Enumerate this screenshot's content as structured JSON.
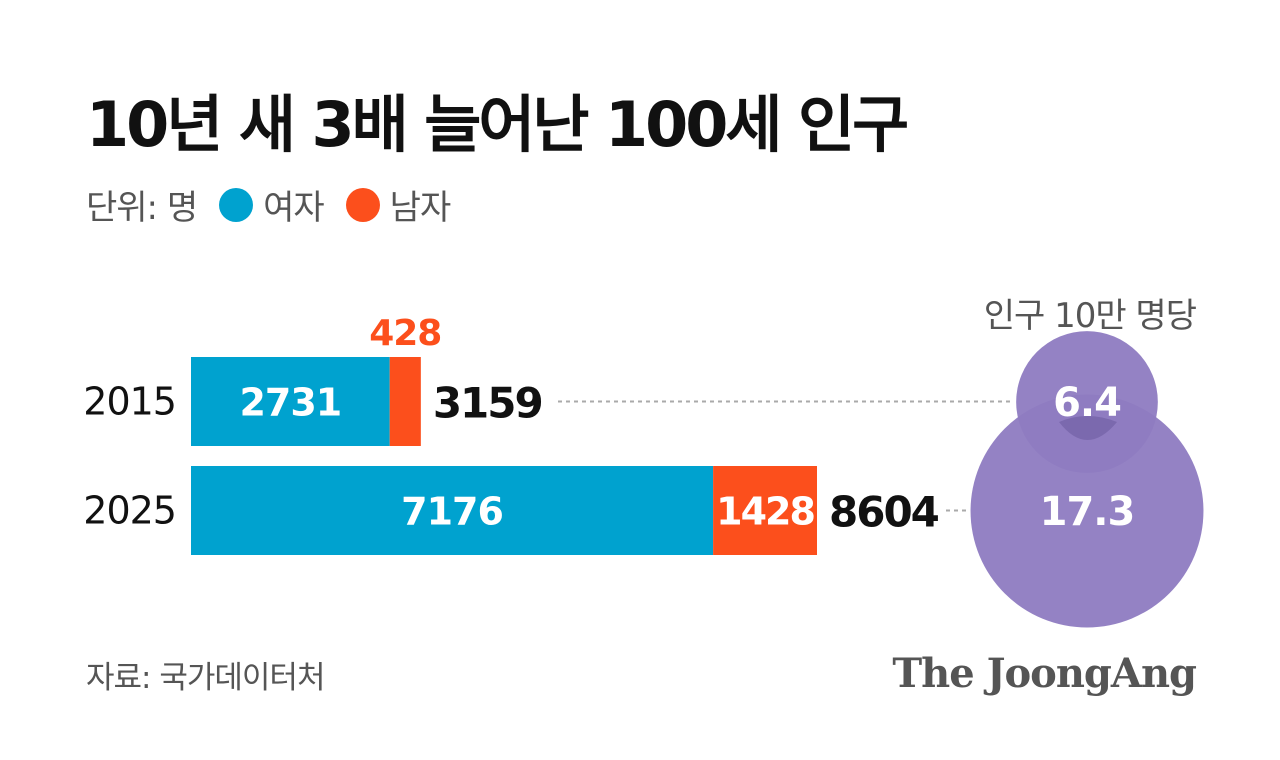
{
  "header": {
    "title": "10년 새 3배 늘어난 100세 인구",
    "unit_label": "단위: 명",
    "legend": [
      {
        "label": "여자",
        "color": "#00a2cf"
      },
      {
        "label": "남자",
        "color": "#fc4f1c"
      }
    ]
  },
  "chart_data": {
    "type": "bar",
    "stacked": true,
    "orientation": "horizontal",
    "categories": [
      "2015",
      "2025"
    ],
    "series": [
      {
        "name": "여자",
        "values": [
          2731,
          7176
        ],
        "color": "#00a2cf"
      },
      {
        "name": "남자",
        "values": [
          428,
          1428
        ],
        "color": "#fc4f1c"
      }
    ],
    "totals": [
      3159,
      8604
    ],
    "rate": {
      "label": "인구 10만 명당",
      "values": [
        6.4,
        17.3
      ],
      "color": "#8e7bc1"
    }
  },
  "footer": {
    "source": "자료: 국가데이터처",
    "brand": "The JoongAng"
  }
}
